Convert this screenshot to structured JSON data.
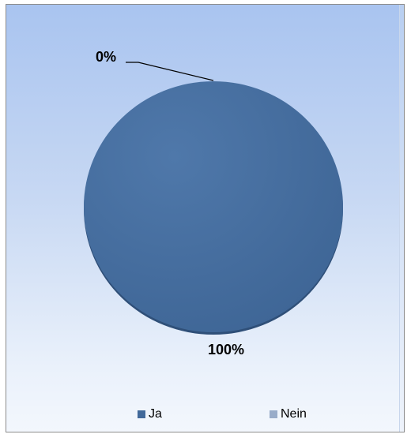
{
  "chart_data": {
    "type": "pie",
    "categories": [
      "Ja",
      "Nein"
    ],
    "values": [
      100,
      0
    ],
    "data_labels": [
      "100%",
      "0%"
    ],
    "colors": [
      "#41699a",
      "#98acc9"
    ],
    "legend_position": "bottom"
  }
}
